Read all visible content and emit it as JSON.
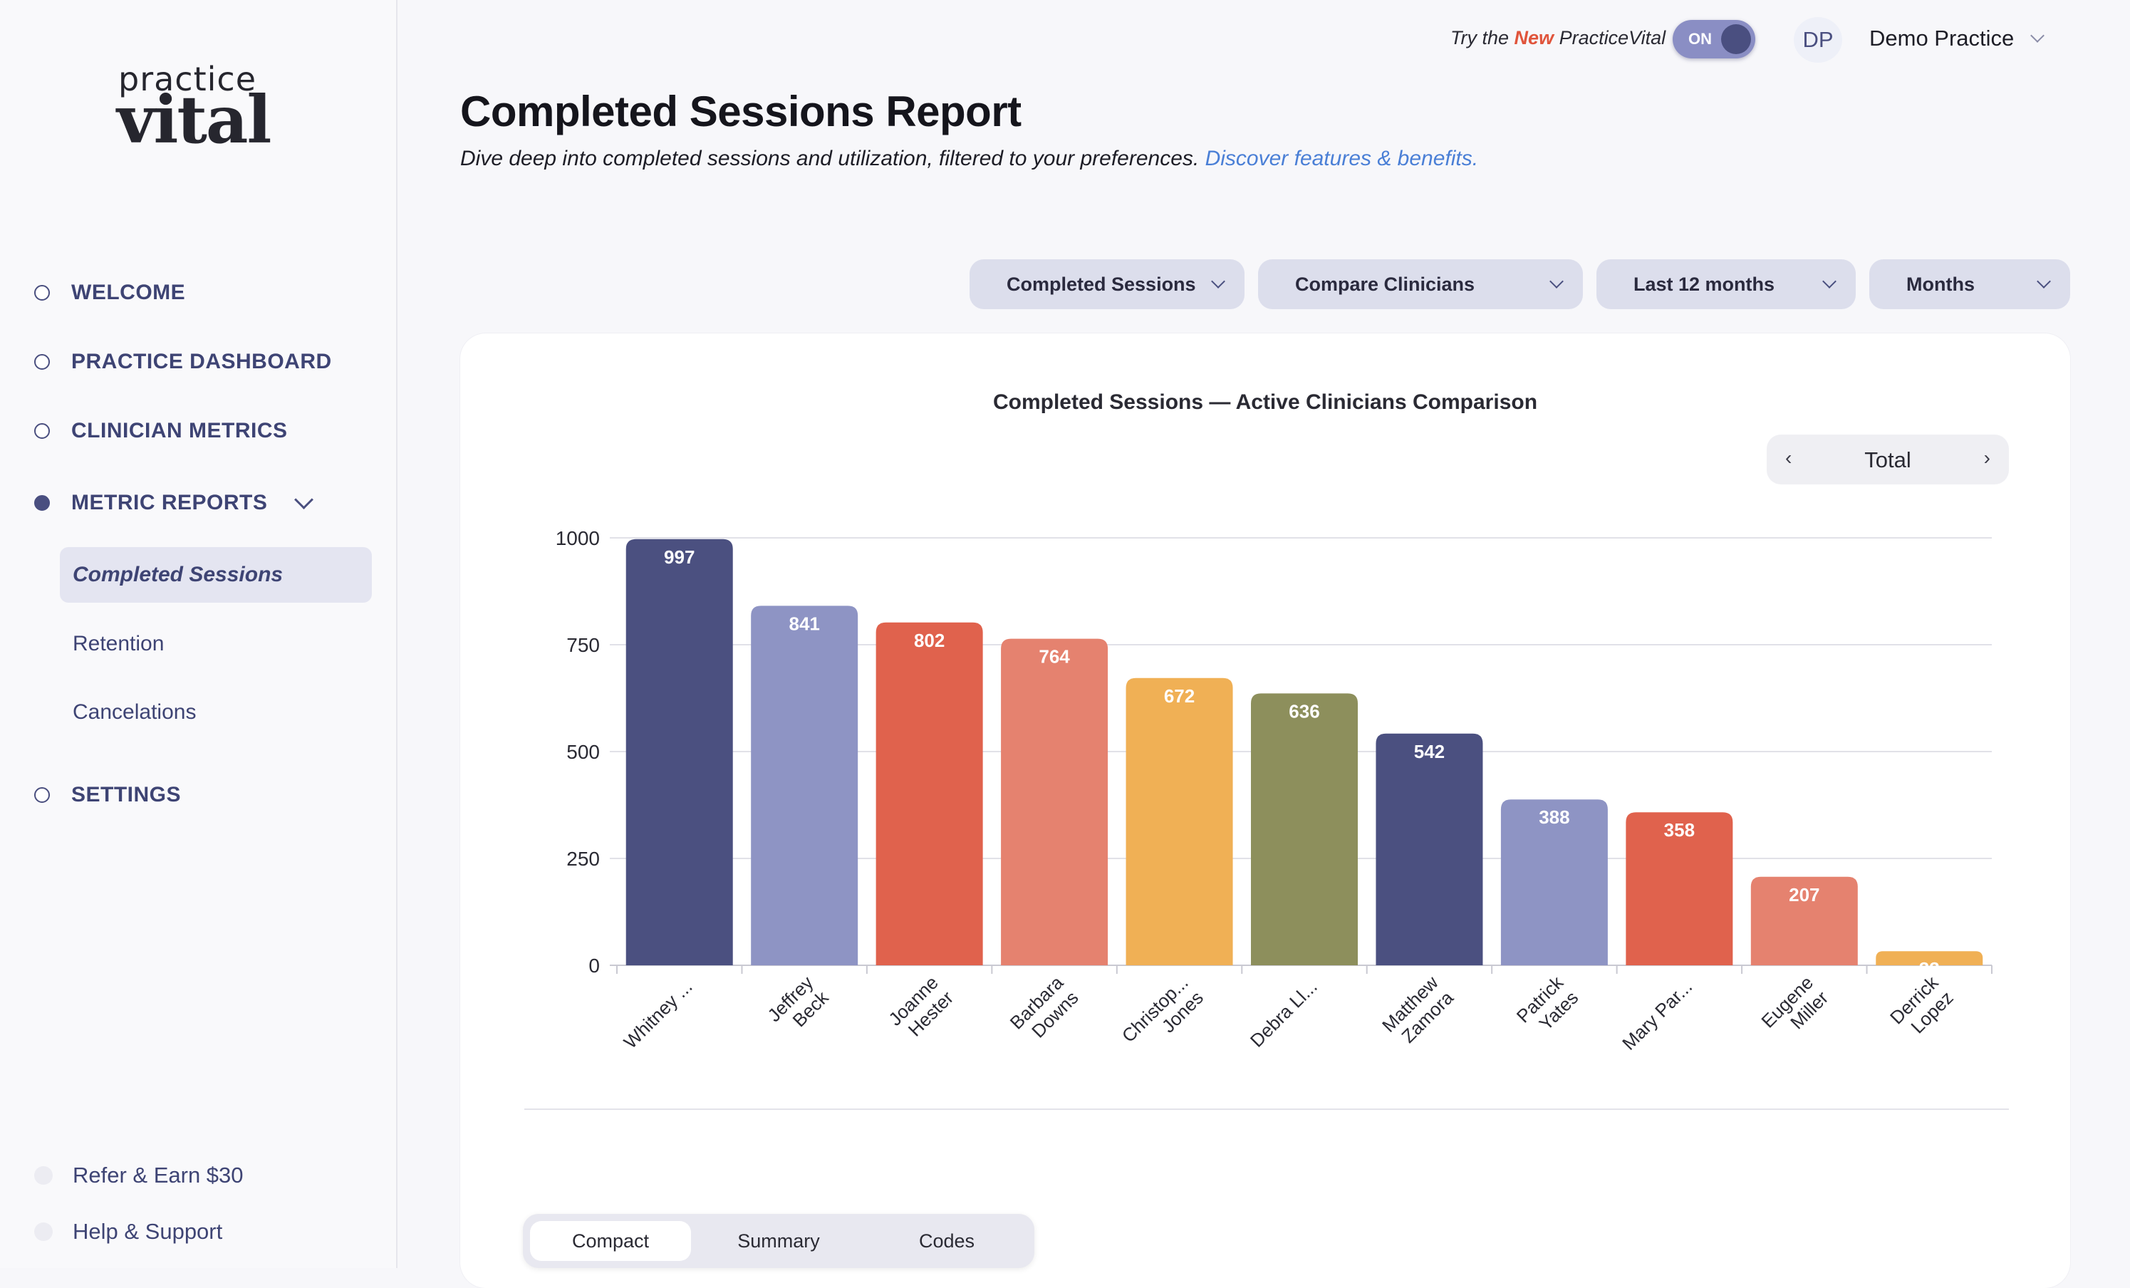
{
  "logo": {
    "top": "practice",
    "main": "vital"
  },
  "nav": {
    "welcome": "WELCOME",
    "dashboard": "PRACTICE DASHBOARD",
    "clinician_metrics": "CLINICIAN METRICS",
    "metric_reports": "METRIC REPORTS",
    "sub": [
      "Completed Sessions",
      "Retention",
      "Cancelations"
    ],
    "settings": "SETTINGS",
    "refer": "Refer & Earn $30",
    "help": "Help & Support"
  },
  "topbar": {
    "try_prefix": "Try the ",
    "try_new": "New",
    "try_suffix": " PracticeVital",
    "toggle": "ON",
    "avatar": "DP",
    "practice": "Demo Practice"
  },
  "header": {
    "title": "Completed Sessions Report",
    "subtitle": "Dive deep into completed sessions and utilization, filtered to your preferences. ",
    "link": "Discover features & benefits."
  },
  "filters": {
    "metric": "Completed Sessions",
    "compare": "Compare Clinicians",
    "range": "Last 12 months",
    "granularity": "Months"
  },
  "period": {
    "label": "Total",
    "prev": "‹",
    "next": "›"
  },
  "tabs": [
    "Compact",
    "Summary",
    "Codes"
  ],
  "chart_data": {
    "type": "bar",
    "title": "Completed Sessions — Active Clinicians Comparison",
    "categories": [
      [
        "Whitney ..."
      ],
      [
        "Jeffrey",
        "Beck"
      ],
      [
        "Joanne",
        "Hester"
      ],
      [
        "Barbara",
        "Downs"
      ],
      [
        "Christop...",
        "Jones"
      ],
      [
        "Debra Ll..."
      ],
      [
        "Matthew",
        "Zamora"
      ],
      [
        "Patrick",
        "Yates"
      ],
      [
        "Mary Par..."
      ],
      [
        "Eugene",
        "Miller"
      ],
      [
        "Derrick",
        "Lopez"
      ]
    ],
    "values": [
      997,
      841,
      802,
      764,
      672,
      636,
      542,
      388,
      358,
      207,
      33
    ],
    "colors": [
      "#4b5080",
      "#8e94c4",
      "#e0624d",
      "#e5826f",
      "#f0b055",
      "#8d8f5c",
      "#4b5080",
      "#8e94c4",
      "#e0624d",
      "#e5826f",
      "#f0b055"
    ],
    "ylim": [
      0,
      1000
    ],
    "yticks": [
      0,
      250,
      500,
      750,
      1000
    ],
    "grid": true
  }
}
